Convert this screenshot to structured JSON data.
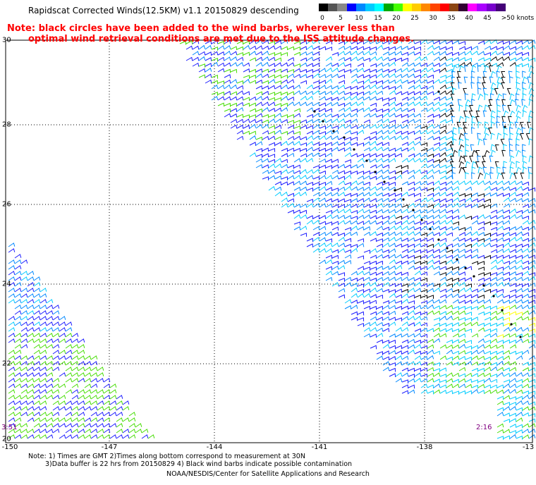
{
  "title": "Rapidscat Corrected Winds(12.5KM) v1.1 20150829 descending",
  "note": {
    "line1": "Note: black circles have been added to the wind barbs, wherever less than",
    "line2": "optimal wind retrieval conditions are met due to the ISS attitude changes."
  },
  "legend": {
    "colors": [
      "#000000",
      "#555555",
      "#888888",
      "#0000ff",
      "#0088ff",
      "#00ccff",
      "#00ffff",
      "#00aa00",
      "#44ff00",
      "#ffff00",
      "#ffcc00",
      "#ff8800",
      "#ff4400",
      "#ff0000",
      "#8b4513",
      "#330033",
      "#ff00ff",
      "#aa00ff",
      "#7700cc",
      "#440077"
    ],
    "labels": [
      "0",
      "5",
      "10",
      "15",
      "20",
      "25",
      "30",
      "35",
      "40",
      "45",
      ">50 knots"
    ]
  },
  "x_ticks": [
    "-150",
    "-147",
    "-144",
    "-141",
    "-138",
    "-13"
  ],
  "y_ticks": [
    "30",
    "28",
    "26",
    "24",
    "22",
    "20"
  ],
  "time_labels": {
    "left": "3:51",
    "right": "2:16"
  },
  "footer": {
    "line1": "Note: 1) Times are GMT 2)Times along bottom correspond to measurement at 30N",
    "line2": "3)Data buffer is 22 hrs from 20150829 4) Black wind barbs indicate possible contamination",
    "line3": "NOAA/NESDIS/Center for Satellite Applications and Research"
  }
}
